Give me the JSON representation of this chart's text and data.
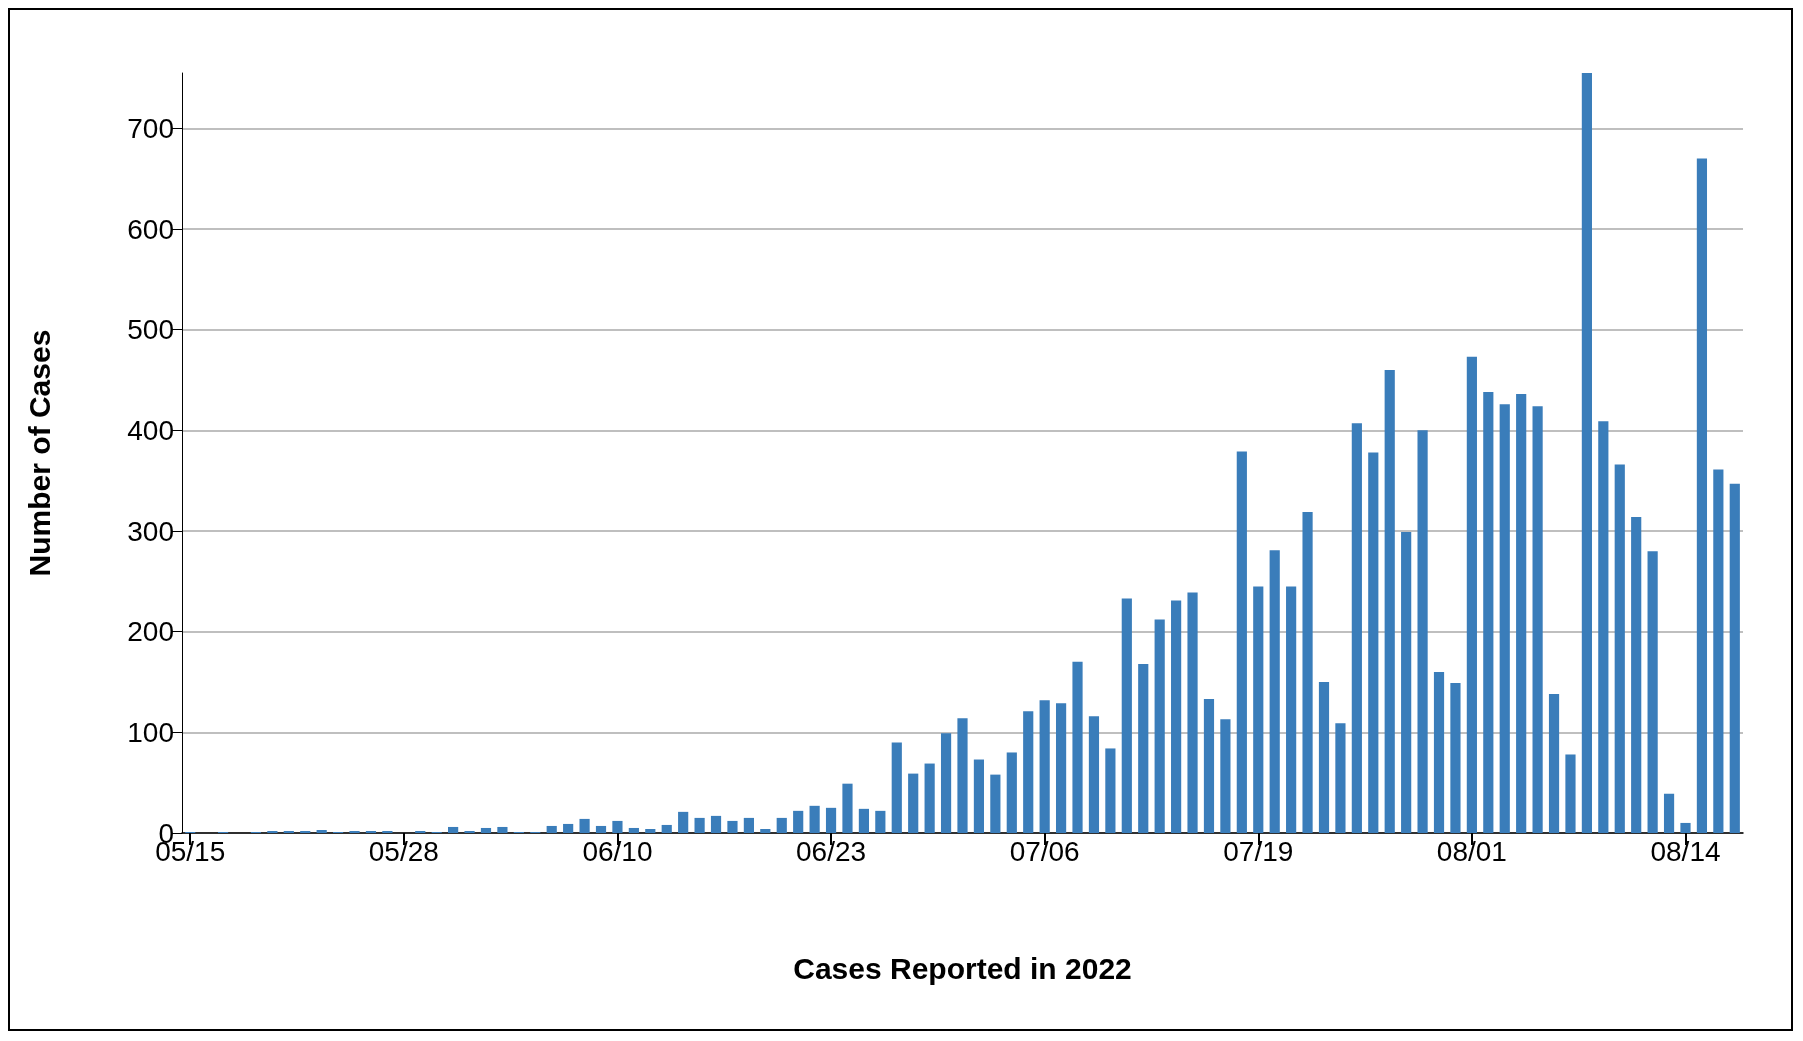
{
  "chart_data": {
    "type": "bar",
    "xlabel": "Cases Reported in 2022",
    "ylabel": "Number of Cases",
    "categories": [
      "05/15",
      null,
      null,
      null,
      null,
      null,
      null,
      null,
      null,
      null,
      null,
      null,
      null,
      "05/28",
      null,
      null,
      null,
      null,
      null,
      null,
      null,
      null,
      null,
      null,
      null,
      null,
      "06/10",
      null,
      null,
      null,
      null,
      null,
      null,
      null,
      null,
      null,
      null,
      null,
      null,
      "06/23",
      null,
      null,
      null,
      null,
      null,
      null,
      null,
      null,
      null,
      null,
      null,
      null,
      "07/06",
      null,
      null,
      null,
      null,
      null,
      null,
      null,
      null,
      null,
      null,
      null,
      null,
      "07/19",
      null,
      null,
      null,
      null,
      null,
      null,
      null,
      null,
      null,
      null,
      null,
      null,
      "08/01",
      null,
      null,
      null,
      null,
      null,
      null,
      null,
      null,
      null,
      null,
      null,
      null,
      "08/14",
      null,
      null,
      null
    ],
    "values": [
      1,
      0,
      1,
      0,
      1,
      2,
      2,
      2,
      3,
      1,
      2,
      2,
      2,
      0,
      2,
      1,
      6,
      2,
      5,
      6,
      1,
      1,
      7,
      9,
      14,
      7,
      12,
      5,
      4,
      8,
      21,
      15,
      17,
      12,
      15,
      4,
      15,
      22,
      27,
      25,
      49,
      24,
      22,
      90,
      59,
      69,
      99,
      114,
      73,
      58,
      80,
      121,
      132,
      129,
      170,
      116,
      84,
      233,
      168,
      212,
      231,
      239,
      133,
      113,
      379,
      245,
      281,
      245,
      319,
      150,
      109,
      407,
      378,
      460,
      299,
      400,
      160,
      149,
      473,
      438,
      426,
      436,
      424,
      138,
      78,
      755,
      409,
      366,
      314,
      280,
      39,
      10,
      670,
      361,
      347
    ],
    "color": "#3a7dba",
    "ylim": [
      0,
      755
    ],
    "yticks": [
      0,
      100,
      200,
      300,
      400,
      500,
      600,
      700
    ],
    "grid": "y"
  }
}
